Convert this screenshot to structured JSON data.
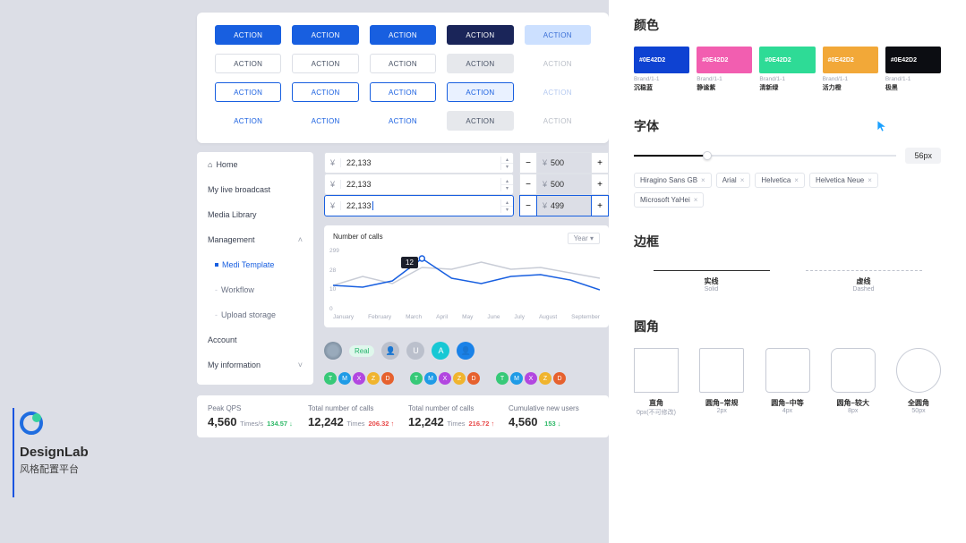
{
  "logo": {
    "title": "DesignLab",
    "subtitle": "风格配置平台"
  },
  "buttons": {
    "label": "ACTION",
    "grid": [
      [
        "fill-blue",
        "fill-blue",
        "fill-blue",
        "fill-dark",
        "fill-light"
      ],
      [
        "outline-gray",
        "outline-gray",
        "outline-gray",
        "outline-solid",
        "text-gray"
      ],
      [
        "outline-blue",
        "outline-blue",
        "outline-blue",
        "outline-blue-solid",
        "text-blue-dis"
      ],
      [
        "text-blue",
        "text-blue",
        "text-blue",
        "text-gray-solid",
        "text-gray"
      ]
    ]
  },
  "sidenav": {
    "items": [
      {
        "label": "Home",
        "icon": "home",
        "kind": "top"
      },
      {
        "label": "My live broadcast",
        "kind": "top"
      },
      {
        "label": "Media Library",
        "kind": "top"
      },
      {
        "label": "Management",
        "kind": "top",
        "chev": "up"
      },
      {
        "label": "Medi Template",
        "kind": "sub",
        "active": true
      },
      {
        "label": "Workflow",
        "kind": "sub"
      },
      {
        "label": "Upload storage",
        "kind": "sub"
      },
      {
        "label": "Account",
        "kind": "top"
      },
      {
        "label": "My information",
        "kind": "top",
        "chev": "down"
      }
    ]
  },
  "inputs": {
    "currency": "¥",
    "rows": [
      {
        "price": "22,133",
        "step": "500",
        "focus": false
      },
      {
        "price": "22,133",
        "step": "500",
        "focus": false
      },
      {
        "price": "22,133",
        "step": "499",
        "focus": true
      }
    ]
  },
  "chart": {
    "title": "Number of calls",
    "selector": "Year",
    "tooltip": "12",
    "months": [
      "January",
      "February",
      "March",
      "April",
      "May",
      "June",
      "July",
      "August",
      "September"
    ],
    "yticks": [
      "0",
      "10",
      "28",
      "299"
    ],
    "series": [
      {
        "name": "gray",
        "color": "#c8ccd6",
        "points": [
          30,
          40,
          32,
          50,
          48,
          56,
          48,
          50,
          44,
          38
        ]
      },
      {
        "name": "blue",
        "color": "#185fe0",
        "points": [
          30,
          28,
          35,
          60,
          38,
          32,
          40,
          42,
          36,
          25
        ]
      }
    ],
    "marker_index": 3
  },
  "avatars": {
    "row1": [
      {
        "kind": "img"
      },
      {
        "kind": "pill",
        "label": "Real",
        "style": "green"
      },
      {
        "kind": "gray",
        "glyph": "👤"
      },
      {
        "kind": "gray",
        "label": "U"
      },
      {
        "kind": "cyan",
        "label": "A"
      },
      {
        "kind": "blue",
        "glyph": "👤"
      }
    ],
    "badge_sets": [
      [
        {
          "l": "T",
          "c": "#37c978"
        },
        {
          "l": "M",
          "c": "#1f9be6"
        },
        {
          "l": "X",
          "c": "#b247e0"
        },
        {
          "l": "Z",
          "c": "#f0b42e"
        },
        {
          "l": "D",
          "c": "#e6612e"
        }
      ],
      [
        {
          "l": "T",
          "c": "#37c978"
        },
        {
          "l": "M",
          "c": "#1f9be6"
        },
        {
          "l": "X",
          "c": "#b247e0"
        },
        {
          "l": "Z",
          "c": "#f0b42e"
        },
        {
          "l": "D",
          "c": "#e6612e"
        }
      ],
      [
        {
          "l": "T",
          "c": "#37c978"
        },
        {
          "l": "M",
          "c": "#1f9be6"
        },
        {
          "l": "X",
          "c": "#b247e0"
        },
        {
          "l": "Z",
          "c": "#f0b42e"
        },
        {
          "l": "D",
          "c": "#e6612e"
        }
      ]
    ]
  },
  "stats": [
    {
      "label": "Peak QPS",
      "value": "4,560",
      "unit": "Times/s",
      "delta": "134.57",
      "dir": "down"
    },
    {
      "label": "Total number of calls",
      "value": "12,242",
      "unit": "Times",
      "delta": "206.32",
      "dir": "up"
    },
    {
      "label": "Total number of calls",
      "value": "12,242",
      "unit": "Times",
      "delta": "216.72",
      "dir": "up"
    },
    {
      "label": "Cumulative new users",
      "value": "4,560",
      "unit": "",
      "delta": "153",
      "dir": "down"
    }
  ],
  "right": {
    "sections": {
      "color": "颜色",
      "font": "字体",
      "border": "边框",
      "radius": "圆角"
    },
    "colors": [
      {
        "hex": "#0E42D2",
        "bg": "#0e42d2",
        "meta": "Brand/1-1",
        "name": "沉稳蓝"
      },
      {
        "hex": "#0E42D2",
        "bg": "#f25eb0",
        "meta": "Brand/1-1",
        "name": "静谧紫"
      },
      {
        "hex": "#0E42D2",
        "bg": "#2edb96",
        "meta": "Brand/1-1",
        "name": "清新绿"
      },
      {
        "hex": "#0E42D2",
        "bg": "#f2a838",
        "meta": "Brand/1-1",
        "name": "活力橙"
      },
      {
        "hex": "#0E42D2",
        "bg": "#0c0d12",
        "meta": "Brand/1-1",
        "name": "极黑"
      }
    ],
    "slider": {
      "value": "56px",
      "percent": 28
    },
    "fonts": [
      "Hiragino Sans GB",
      "Arial",
      "Helvetica",
      "Helvetica Neue",
      "Microsoft YaHei"
    ],
    "borders": [
      {
        "label": "实线",
        "sub": "Solid",
        "kind": "solid"
      },
      {
        "label": "虚线",
        "sub": "Dashed",
        "kind": "dashed"
      }
    ],
    "radii": [
      {
        "label": "直角",
        "sub": "0px(不可修改)",
        "r": 0
      },
      {
        "label": "圆角–常规",
        "sub": "2px",
        "r": 2
      },
      {
        "label": "圆角–中等",
        "sub": "4px",
        "r": 4
      },
      {
        "label": "圆角–较大",
        "sub": "8px",
        "r": 8
      },
      {
        "label": "全圆角",
        "sub": "50px",
        "r": 50
      }
    ]
  }
}
